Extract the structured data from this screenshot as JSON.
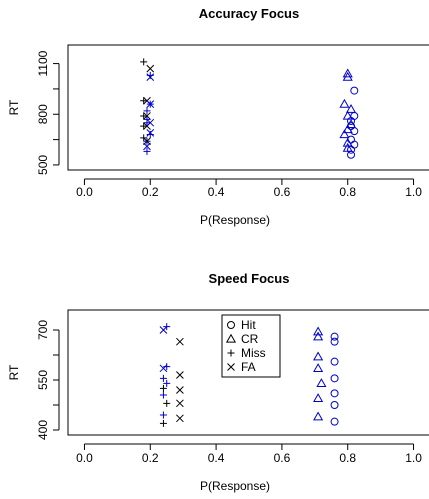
{
  "chart_data": [
    {
      "type": "scatter",
      "title": "Accuracy Focus",
      "xlabel": "P(Response)",
      "ylabel": "RT",
      "xlim": [
        -0.05,
        1.05
      ],
      "ylim": [
        470,
        1210
      ],
      "x_ticks": [
        0.0,
        0.2,
        0.4,
        0.6,
        0.8,
        1.0
      ],
      "x_tick_labels": [
        "0.0",
        "0.2",
        "0.4",
        "0.6",
        "0.8",
        "1.0"
      ],
      "y_ticks": [
        500,
        800,
        1100
      ],
      "y_tick_labels": [
        "500",
        "800",
        "1100"
      ],
      "series": [
        {
          "marker": "circle",
          "color": "#0000cc",
          "points": [
            [
              0.81,
              560
            ],
            [
              0.81,
              590
            ],
            [
              0.82,
              620
            ],
            [
              0.81,
              650
            ],
            [
              0.82,
              700
            ],
            [
              0.81,
              730
            ],
            [
              0.81,
              760
            ],
            [
              0.82,
              790
            ],
            [
              0.82,
              940
            ]
          ]
        },
        {
          "marker": "triangle",
          "color": "#0000cc",
          "points": [
            [
              0.8,
              600
            ],
            [
              0.8,
              630
            ],
            [
              0.79,
              680
            ],
            [
              0.8,
              710
            ],
            [
              0.81,
              740
            ],
            [
              0.8,
              790
            ],
            [
              0.81,
              830
            ],
            [
              0.79,
              860
            ],
            [
              0.8,
              1020
            ],
            [
              0.8,
              1040
            ]
          ]
        },
        {
          "marker": "plus",
          "color": "#000000",
          "points": [
            [
              0.18,
              660
            ],
            [
              0.18,
              730
            ],
            [
              0.18,
              790
            ],
            [
              0.18,
              880
            ],
            [
              0.18,
              1110
            ]
          ]
        },
        {
          "marker": "plus",
          "color": "#0000cc",
          "points": [
            [
              0.19,
              580
            ],
            [
              0.19,
              640
            ],
            [
              0.2,
              680
            ],
            [
              0.19,
              750
            ],
            [
              0.19,
              770
            ],
            [
              0.19,
              820
            ],
            [
              0.2,
              860
            ],
            [
              0.2,
              1030
            ]
          ]
        },
        {
          "marker": "x",
          "color": "#000000",
          "points": [
            [
              0.19,
              640
            ],
            [
              0.19,
              730
            ],
            [
              0.19,
              790
            ],
            [
              0.19,
              880
            ],
            [
              0.2,
              1070
            ]
          ]
        },
        {
          "marker": "x",
          "color": "#0000cc",
          "points": [
            [
              0.19,
              610
            ],
            [
              0.2,
              690
            ],
            [
              0.2,
              750
            ],
            [
              0.2,
              860
            ],
            [
              0.2,
              1020
            ]
          ]
        }
      ]
    },
    {
      "type": "scatter",
      "title": "Speed Focus",
      "xlabel": "P(Response)",
      "ylabel": "RT",
      "xlim": [
        -0.05,
        1.05
      ],
      "ylim": [
        385,
        760
      ],
      "x_ticks": [
        0.0,
        0.2,
        0.4,
        0.6,
        0.8,
        1.0
      ],
      "x_tick_labels": [
        "0.0",
        "0.2",
        "0.4",
        "0.6",
        "0.8",
        "1.0"
      ],
      "y_ticks": [
        400,
        550,
        700
      ],
      "y_tick_labels": [
        "400",
        "550",
        "700"
      ],
      "legend": {
        "position": "top-center",
        "entries": [
          {
            "label": "Hit",
            "marker": "circle"
          },
          {
            "label": "CR",
            "marker": "triangle"
          },
          {
            "label": "Miss",
            "marker": "plus"
          },
          {
            "label": "FA",
            "marker": "x"
          }
        ]
      },
      "series": [
        {
          "marker": "circle",
          "color": "#0000cc",
          "points": [
            [
              0.76,
              425
            ],
            [
              0.76,
              475
            ],
            [
              0.76,
              510
            ],
            [
              0.76,
              555
            ],
            [
              0.76,
              605
            ],
            [
              0.76,
              665
            ],
            [
              0.76,
              680
            ]
          ]
        },
        {
          "marker": "triangle",
          "color": "#0000cc",
          "points": [
            [
              0.71,
              440
            ],
            [
              0.71,
              495
            ],
            [
              0.72,
              540
            ],
            [
              0.71,
              585
            ],
            [
              0.71,
              620
            ],
            [
              0.71,
              680
            ],
            [
              0.71,
              695
            ]
          ]
        },
        {
          "marker": "plus",
          "color": "#000000",
          "points": [
            [
              0.24,
              420
            ],
            [
              0.25,
              480
            ],
            [
              0.24,
              525
            ]
          ]
        },
        {
          "marker": "plus",
          "color": "#0000cc",
          "points": [
            [
              0.24,
              445
            ],
            [
              0.24,
              505
            ],
            [
              0.25,
              540
            ],
            [
              0.24,
              555
            ],
            [
              0.25,
              590
            ],
            [
              0.25,
              710
            ]
          ]
        },
        {
          "marker": "x",
          "color": "#000000",
          "points": [
            [
              0.29,
              435
            ],
            [
              0.29,
              480
            ],
            [
              0.29,
              520
            ],
            [
              0.29,
              565
            ],
            [
              0.29,
              665
            ]
          ]
        },
        {
          "marker": "x",
          "color": "#0000cc",
          "points": [
            [
              0.24,
              585
            ],
            [
              0.24,
              700
            ]
          ]
        }
      ]
    }
  ]
}
